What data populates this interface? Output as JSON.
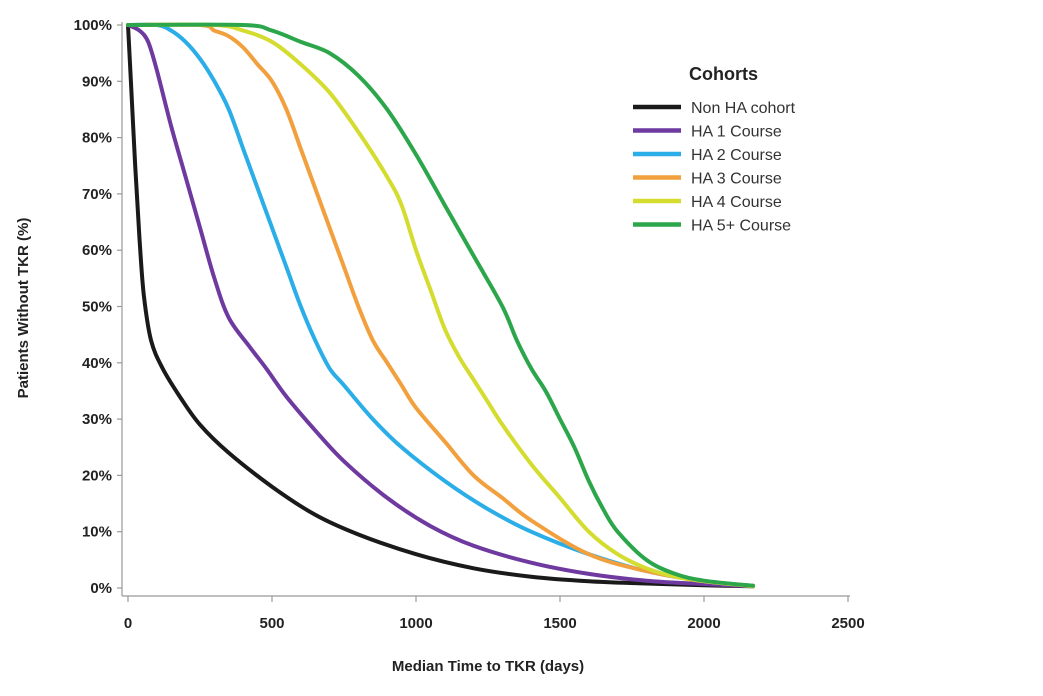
{
  "chart_data": {
    "type": "line",
    "xlabel": "Median Time to TKR (days)",
    "ylabel": "Patients Without TKR (%)",
    "xlim": [
      0,
      2500
    ],
    "ylim": [
      0,
      100
    ],
    "xticks": [
      0,
      500,
      1000,
      1500,
      2000,
      2500
    ],
    "yticks": [
      0,
      10,
      20,
      30,
      40,
      50,
      60,
      70,
      80,
      90,
      100
    ],
    "xtick_labels": [
      "0",
      "500",
      "1000",
      "1500",
      "2000",
      "2500"
    ],
    "ytick_labels": [
      "0%",
      "10%",
      "20%",
      "30%",
      "40%",
      "50%",
      "60%",
      "70%",
      "80%",
      "90%",
      "100%"
    ],
    "grid": false,
    "legend": {
      "title": "Cohorts",
      "position": "top-right"
    },
    "series": [
      {
        "name": "Non HA cohort",
        "color": "#1a1a1a",
        "points": [
          [
            0,
            100
          ],
          [
            10,
            90
          ],
          [
            25,
            75
          ],
          [
            40,
            62
          ],
          [
            55,
            52
          ],
          [
            80,
            44
          ],
          [
            120,
            39
          ],
          [
            180,
            34
          ],
          [
            250,
            29
          ],
          [
            350,
            24
          ],
          [
            500,
            18
          ],
          [
            650,
            13
          ],
          [
            800,
            9.5
          ],
          [
            1000,
            6
          ],
          [
            1200,
            3.5
          ],
          [
            1400,
            2
          ],
          [
            1600,
            1.2
          ],
          [
            1800,
            0.8
          ],
          [
            2000,
            0.5
          ],
          [
            2170,
            0.3
          ]
        ]
      },
      {
        "name": "HA 1 Course",
        "color": "#6f3aa0",
        "points": [
          [
            0,
            100
          ],
          [
            40,
            99
          ],
          [
            70,
            97
          ],
          [
            100,
            92
          ],
          [
            150,
            82
          ],
          [
            200,
            73
          ],
          [
            250,
            64
          ],
          [
            300,
            55
          ],
          [
            350,
            48
          ],
          [
            420,
            43
          ],
          [
            480,
            39
          ],
          [
            550,
            34
          ],
          [
            650,
            28
          ],
          [
            750,
            22.5
          ],
          [
            900,
            16
          ],
          [
            1050,
            11
          ],
          [
            1200,
            7.5
          ],
          [
            1400,
            4.5
          ],
          [
            1600,
            2.5
          ],
          [
            1800,
            1.3
          ],
          [
            2000,
            0.7
          ],
          [
            2170,
            0.3
          ]
        ]
      },
      {
        "name": "HA 2 Course",
        "color": "#2baee8",
        "points": [
          [
            0,
            100
          ],
          [
            100,
            100
          ],
          [
            150,
            99
          ],
          [
            200,
            97
          ],
          [
            250,
            94
          ],
          [
            300,
            90
          ],
          [
            350,
            85
          ],
          [
            400,
            78
          ],
          [
            450,
            71
          ],
          [
            500,
            64
          ],
          [
            550,
            57
          ],
          [
            600,
            50
          ],
          [
            650,
            44
          ],
          [
            700,
            39
          ],
          [
            750,
            36
          ],
          [
            850,
            30
          ],
          [
            950,
            25
          ],
          [
            1100,
            19
          ],
          [
            1250,
            14
          ],
          [
            1400,
            10
          ],
          [
            1600,
            6
          ],
          [
            1800,
            3
          ],
          [
            2000,
            1.2
          ],
          [
            2170,
            0.4
          ]
        ]
      },
      {
        "name": "HA 3 Course",
        "color": "#f2a03d",
        "points": [
          [
            0,
            100
          ],
          [
            250,
            100
          ],
          [
            300,
            99
          ],
          [
            350,
            98
          ],
          [
            400,
            96
          ],
          [
            450,
            93
          ],
          [
            500,
            90
          ],
          [
            550,
            85
          ],
          [
            600,
            78
          ],
          [
            650,
            71
          ],
          [
            700,
            64
          ],
          [
            750,
            57
          ],
          [
            800,
            50
          ],
          [
            850,
            44
          ],
          [
            900,
            40
          ],
          [
            950,
            36
          ],
          [
            1000,
            32
          ],
          [
            1100,
            26
          ],
          [
            1200,
            20
          ],
          [
            1300,
            16
          ],
          [
            1400,
            12
          ],
          [
            1600,
            6
          ],
          [
            1800,
            3
          ],
          [
            2000,
            1.2
          ],
          [
            2170,
            0.4
          ]
        ]
      },
      {
        "name": "HA 4 Course",
        "color": "#d4dc30",
        "points": [
          [
            0,
            100
          ],
          [
            300,
            100
          ],
          [
            400,
            99
          ],
          [
            500,
            97
          ],
          [
            600,
            93
          ],
          [
            700,
            88
          ],
          [
            800,
            81
          ],
          [
            900,
            73
          ],
          [
            950,
            68
          ],
          [
            1000,
            60
          ],
          [
            1050,
            53
          ],
          [
            1100,
            46
          ],
          [
            1150,
            41
          ],
          [
            1200,
            37
          ],
          [
            1250,
            33
          ],
          [
            1300,
            29
          ],
          [
            1400,
            22
          ],
          [
            1500,
            16
          ],
          [
            1600,
            10
          ],
          [
            1700,
            6
          ],
          [
            1800,
            3.5
          ],
          [
            1900,
            2
          ],
          [
            2000,
            1.2
          ],
          [
            2170,
            0.3
          ]
        ]
      },
      {
        "name": "HA 5+ Course",
        "color": "#2ca64a",
        "points": [
          [
            0,
            100
          ],
          [
            400,
            100
          ],
          [
            500,
            99
          ],
          [
            600,
            97
          ],
          [
            700,
            95
          ],
          [
            800,
            91
          ],
          [
            900,
            85
          ],
          [
            1000,
            77
          ],
          [
            1100,
            68
          ],
          [
            1200,
            59
          ],
          [
            1300,
            50
          ],
          [
            1350,
            44
          ],
          [
            1400,
            39
          ],
          [
            1450,
            35
          ],
          [
            1500,
            30
          ],
          [
            1550,
            25
          ],
          [
            1600,
            19
          ],
          [
            1650,
            14
          ],
          [
            1700,
            10
          ],
          [
            1800,
            5
          ],
          [
            1900,
            2.5
          ],
          [
            2000,
            1.3
          ],
          [
            2170,
            0.4
          ]
        ]
      }
    ]
  }
}
